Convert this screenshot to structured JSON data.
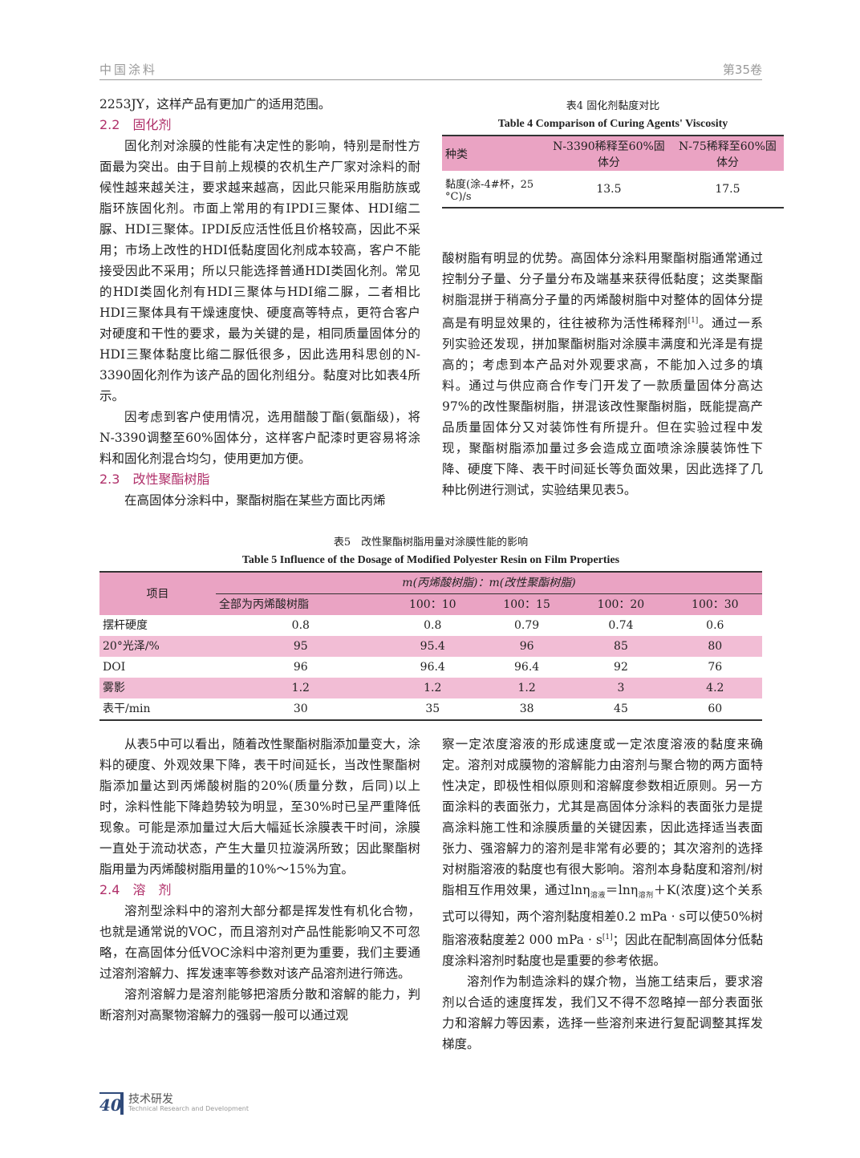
{
  "header": {
    "journal": "中国涂料",
    "volume": "第35卷"
  },
  "left_top": {
    "p0": "2253JY，这样产品有更加广的适用范围。",
    "h22": "2.2　固化剂",
    "p1": "固化剂对涂膜的性能有决定性的影响，特别是耐性方面最为突出。由于目前上规模的农机生产厂家对涂料的耐候性越来越关注，要求越来越高，因此只能采用脂肪族或脂环族固化剂。市面上常用的有IPDI三聚体、HDI缩二脲、HDI三聚体。IPDI反应活性低且价格较高，因此不采用；市场上改性的HDI低黏度固化剂成本较高，客户不能接受因此不采用；所以只能选择普通HDI类固化剂。常见的HDI类固化剂有HDI三聚体与HDI缩二脲，二者相比HDI三聚体具有干燥速度快、硬度高等特点，更符合客户对硬度和干性的要求，最为关键的是，相同质量固体分的HDI三聚体黏度比缩二脲低很多，因此选用科思创的N-3390固化剂作为该产品的固化剂组分。黏度对比如表4所示。",
    "p2": "因考虑到客户使用情况，选用醋酸丁酯(氨酯级)，将N-3390调整至60%固体分，这样客户配漆时更容易将涂料和固化剂混合均匀，使用更加方便。",
    "h23": "2.3　改性聚酯树脂",
    "p3": "在高固体分涂料中，聚酯树脂在某些方面比丙烯"
  },
  "table4": {
    "caption_cn": "表4 固化剂黏度对比",
    "caption_en": "Table 4   Comparison of Curing Agents' Viscosity",
    "headers": [
      "种类",
      "N-3390稀释至60%固体分",
      "N-75稀释至60%固体分"
    ],
    "row": [
      "黏度(涂-4#杯，25 °C)/s",
      "13.5",
      "17.5"
    ]
  },
  "right_top": {
    "p1": "酸树脂有明显的优势。高固体分涂料用聚酯树脂通常通过控制分子量、分子量分布及端基来获得低黏度；这类聚酯树脂混拼于稍高分子量的丙烯酸树脂中对整体的固体分提高是有明显效果的，往往被称为活性稀释剂",
    "ref1": "[1]",
    "p1b": "。通过一系列实验还发现，拼加聚酯树脂对涂膜丰满度和光泽是有提高的；考虑到本产品对外观要求高，不能加入过多的填料。通过与供应商合作专门开发了一款质量固体分高达97%的改性聚酯树脂，拼混该改性聚酯树脂，既能提高产品质量固体分又对装饰性有所提升。但在实验过程中发现，聚酯树脂添加量过多会造成立面喷涂涂膜装饰性下降、硬度下降、表干时间延长等负面效果，因此选择了几种比例进行测试，实验结果见表5。"
  },
  "table5": {
    "caption_cn": "表5　改性聚酯树脂用量对涂膜性能的影响",
    "caption_en": "Table 5   Influence of the Dosage of Modified Polyester Resin on Film Properties",
    "item_header": "项目",
    "group_header": "m(丙烯酸树脂)：m(改性聚酯树脂)",
    "columns": [
      "全部为丙烯酸树脂",
      "100：10",
      "100：15",
      "100：20",
      "100：30"
    ],
    "rows": [
      {
        "label": "摆杆硬度",
        "values": [
          "0.8",
          "0.8",
          "0.79",
          "0.74",
          "0.6"
        ]
      },
      {
        "label": "20°光泽/%",
        "values": [
          "95",
          "95.4",
          "96",
          "85",
          "80"
        ]
      },
      {
        "label": "DOI",
        "values": [
          "96",
          "96.4",
          "96.4",
          "92",
          "76"
        ]
      },
      {
        "label": "雾影",
        "values": [
          "1.2",
          "1.2",
          "1.2",
          "3",
          "4.2"
        ]
      },
      {
        "label": "表干/min",
        "values": [
          "30",
          "35",
          "38",
          "45",
          "60"
        ]
      }
    ]
  },
  "left_bottom": {
    "p1": "从表5中可以看出，随着改性聚酯树脂添加量变大，涂料的硬度、外观效果下降，表干时间延长，当改性聚酯树脂添加量达到丙烯酸树脂的20%(质量分数，后同)以上时，涂料性能下降趋势较为明显，至30%时已呈严重降低现象。可能是添加量过大后大幅延长涂膜表干时间，涂膜一直处于流动状态，产生大量贝拉漩涡所致；因此聚酯树脂用量为丙烯酸树脂用量的10%～15%为宜。",
    "h24": "2.4　溶　剂",
    "p2": "溶剂型涂料中的溶剂大部分都是挥发性有机化合物，也就是通常说的VOC，而且溶剂对产品性能影响又不可忽略，在高固体分低VOC涂料中溶剂更为重要，我们主要通过溶剂溶解力、挥发速率等参数对该产品溶剂进行筛选。",
    "p3": "溶剂溶解力是溶剂能够把溶质分散和溶解的能力，判断溶剂对高聚物溶解力的强弱一般可以通过观"
  },
  "right_bottom": {
    "p1a": "察一定浓度溶液的形成速度或一定浓度溶液的黏度来确定。溶剂对成膜物的溶解能力由溶剂与聚合物的两方面特性决定，即极性相似原则和溶解度参数相近原则。另一方面涂料的表面张力，尤其是高固体分涂料的表面张力是提高涂料施工性和涂膜质量的关键因素，因此选择适当表面张力、强溶解力的溶剂是非常有必要的；其次溶剂的选择对树脂溶液的黏度也有很大影响。溶剂本身黏度和溶剂/树脂相互作用效果，通过lnη",
    "sub1": "溶液",
    "p1b": "＝lnη",
    "sub2": "溶剂",
    "p1c": "＋K(浓度)这个关系式可以得知，两个溶剂黏度相差0.2 mPa · s可以使50%树脂溶液黏度差2 000 mPa · s",
    "ref1": "[1]",
    "p1d": "；因此在配制高固体分低黏度涂料溶剂时黏度也是重要的参考依据。",
    "p2": "溶剂作为制造涂料的媒介物，当施工结束后，要求溶剂以合适的速度挥发，我们又不得不忽略掉一部分表面张力和溶解力等因素，选择一些溶剂来进行复配调整其挥发梯度。"
  },
  "footer": {
    "page": "40",
    "section_cn": "技术研发",
    "section_en": "Technical Research and Development"
  },
  "colors": {
    "accent": "#b0306a",
    "table_header": "#eaa3c3",
    "table_stripe": "#f2bdd5"
  }
}
